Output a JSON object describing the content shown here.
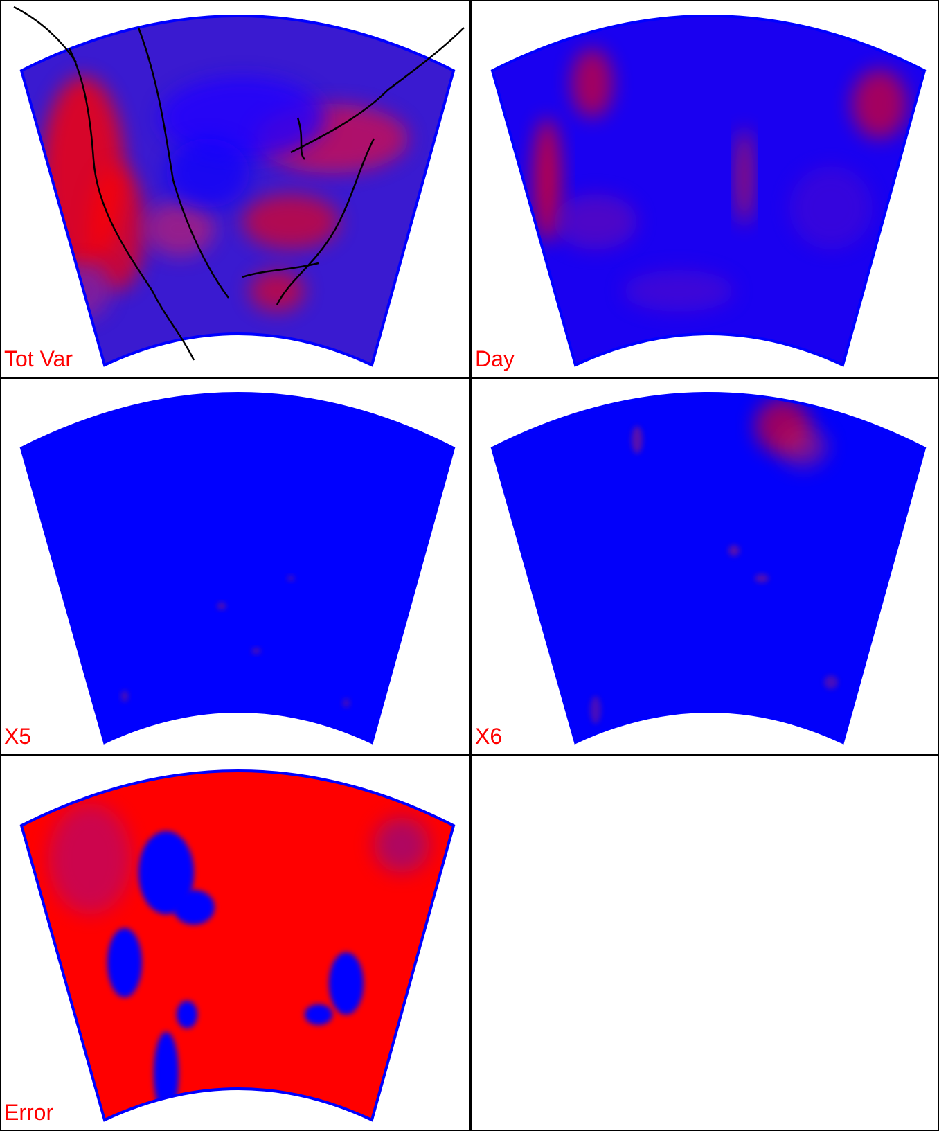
{
  "panels": [
    {
      "label": "Tot Var"
    },
    {
      "label": "Day"
    },
    {
      "label": "X5"
    },
    {
      "label": "X6"
    },
    {
      "label": "Error"
    }
  ]
}
